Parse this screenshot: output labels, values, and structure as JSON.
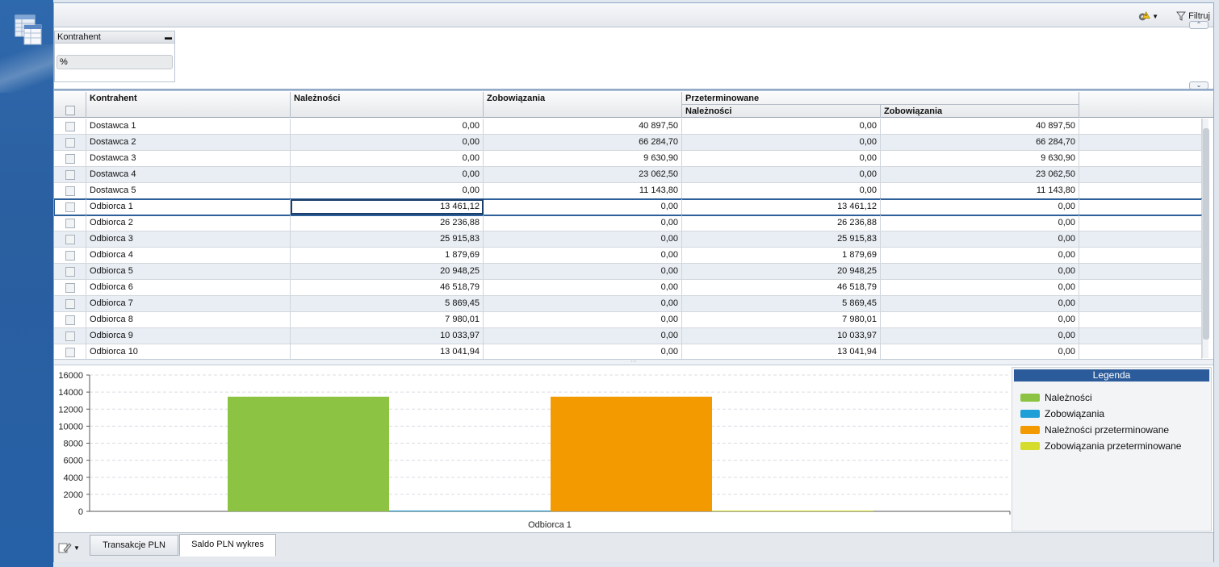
{
  "topbar": {
    "filter_label": "Filtruj",
    "gear_icon": "gear-warning-icon",
    "filter_icon": "funnel-icon"
  },
  "filter_panel": {
    "title": "Kontrahent",
    "value": "%"
  },
  "grid": {
    "headers": {
      "kontrahent": "Kontrahent",
      "naleznosci": "Należności",
      "zobowiazania": "Zobowiązania",
      "przeterminowane": "Przeterminowane",
      "p_naleznosci": "Należności",
      "p_zobowiazania": "Zobowiązania"
    },
    "rows": [
      {
        "name": "Dostawca 1",
        "nal": "0,00",
        "zob": "40 897,50",
        "pnal": "0,00",
        "pzob": "40 897,50"
      },
      {
        "name": "Dostawca 2",
        "nal": "0,00",
        "zob": "66 284,70",
        "pnal": "0,00",
        "pzob": "66 284,70"
      },
      {
        "name": "Dostawca 3",
        "nal": "0,00",
        "zob": "9 630,90",
        "pnal": "0,00",
        "pzob": "9 630,90"
      },
      {
        "name": "Dostawca 4",
        "nal": "0,00",
        "zob": "23 062,50",
        "pnal": "0,00",
        "pzob": "23 062,50"
      },
      {
        "name": "Dostawca 5",
        "nal": "0,00",
        "zob": "11 143,80",
        "pnal": "0,00",
        "pzob": "11 143,80"
      },
      {
        "name": "Odbiorca 1",
        "nal": "13 461,12",
        "zob": "0,00",
        "pnal": "13 461,12",
        "pzob": "0,00",
        "selected": true
      },
      {
        "name": "Odbiorca 2",
        "nal": "26 236,88",
        "zob": "0,00",
        "pnal": "26 236,88",
        "pzob": "0,00"
      },
      {
        "name": "Odbiorca 3",
        "nal": "25 915,83",
        "zob": "0,00",
        "pnal": "25 915,83",
        "pzob": "0,00"
      },
      {
        "name": "Odbiorca 4",
        "nal": "1 879,69",
        "zob": "0,00",
        "pnal": "1 879,69",
        "pzob": "0,00"
      },
      {
        "name": "Odbiorca 5",
        "nal": "20 948,25",
        "zob": "0,00",
        "pnal": "20 948,25",
        "pzob": "0,00"
      },
      {
        "name": "Odbiorca 6",
        "nal": "46 518,79",
        "zob": "0,00",
        "pnal": "46 518,79",
        "pzob": "0,00"
      },
      {
        "name": "Odbiorca 7",
        "nal": "5 869,45",
        "zob": "0,00",
        "pnal": "5 869,45",
        "pzob": "0,00"
      },
      {
        "name": "Odbiorca 8",
        "nal": "7 980,01",
        "zob": "0,00",
        "pnal": "7 980,01",
        "pzob": "0,00"
      },
      {
        "name": "Odbiorca 9",
        "nal": "10 033,97",
        "zob": "0,00",
        "pnal": "10 033,97",
        "pzob": "0,00"
      },
      {
        "name": "Odbiorca 10",
        "nal": "13 041,94",
        "zob": "0,00",
        "pnal": "13 041,94",
        "pzob": "0,00"
      }
    ]
  },
  "chart_data": {
    "type": "bar",
    "categories": [
      "Odbiorca 1"
    ],
    "series": [
      {
        "name": "Należności",
        "values": [
          13461.12
        ],
        "color": "#8dc342"
      },
      {
        "name": "Zobowiązania",
        "values": [
          0
        ],
        "color": "#1e9fd8"
      },
      {
        "name": "Należności przeterminowane",
        "values": [
          13461.12
        ],
        "color": "#f29a00"
      },
      {
        "name": "Zobowiązania przeterminowane",
        "values": [
          0
        ],
        "color": "#d6dc2c"
      }
    ],
    "ylim": [
      0,
      16000
    ],
    "yticks": [
      0,
      2000,
      4000,
      6000,
      8000,
      10000,
      12000,
      14000,
      16000
    ],
    "grid": true,
    "legend_title": "Legenda",
    "legend_position": "right"
  },
  "tabs": [
    {
      "label": "Transakcje PLN",
      "active": false
    },
    {
      "label": "Saldo PLN wykres",
      "active": true
    }
  ]
}
